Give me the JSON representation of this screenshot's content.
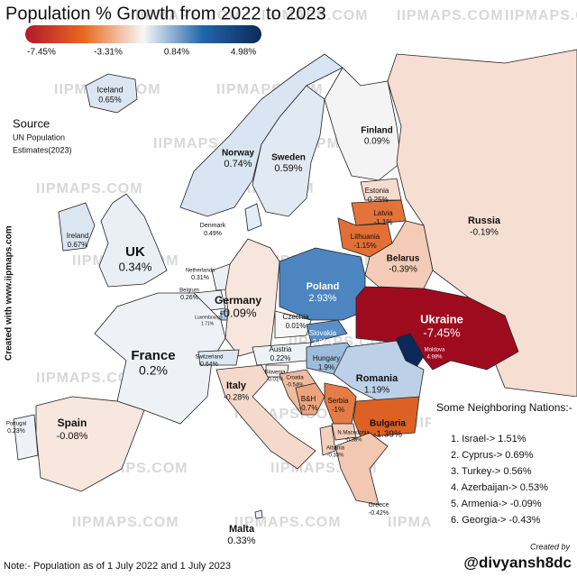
{
  "header": {
    "title": "Population % Growth from 2022 to 2023"
  },
  "legend": {
    "ticks": [
      "-7.45%",
      "-3.31%",
      "0.84%",
      "4.98%"
    ],
    "colors": [
      "#b2182b",
      "#e96a1f",
      "#f7f7f7",
      "#2166ac",
      "#0b2a5a"
    ]
  },
  "source": {
    "title": "Source",
    "lines": [
      "UN Population",
      "Estimates(2023)"
    ]
  },
  "watermark": "IIPMAPS.COM",
  "side_text": "Created with www.iipmaps.com",
  "countries": [
    {
      "name": "Iceland",
      "value": "0.65%",
      "color": "#dce6f2"
    },
    {
      "name": "Norway",
      "value": "0.74%",
      "color": "#d9e5f2"
    },
    {
      "name": "Sweden",
      "value": "0.59%",
      "color": "#e1e9f3"
    },
    {
      "name": "Finland",
      "value": "0.09%",
      "color": "#f4f4f4"
    },
    {
      "name": "Russia",
      "value": "-0.19%",
      "color": "#f6ded2"
    },
    {
      "name": "Estonia",
      "value": "-0.25%",
      "color": "#f6dccf"
    },
    {
      "name": "Latvia",
      "value": "-1.1%",
      "color": "#e4733a"
    },
    {
      "name": "Lithuania",
      "value": "-1.15%",
      "color": "#e26f35"
    },
    {
      "name": "Belarus",
      "value": "-0.39%",
      "color": "#f3cbb6"
    },
    {
      "name": "Denmark",
      "value": "0.49%",
      "color": "#e4ecf5"
    },
    {
      "name": "Ireland",
      "value": "0.67%",
      "color": "#dce6f2"
    },
    {
      "name": "UK",
      "value": "0.34%",
      "color": "#eaeff6"
    },
    {
      "name": "Netherlands",
      "value": "0.31%",
      "color": "#ebf0f6"
    },
    {
      "name": "Belgium",
      "value": "0.26%",
      "color": "#edf1f6"
    },
    {
      "name": "Luxembourg",
      "value": "1.71%",
      "color": "#a8c4e0"
    },
    {
      "name": "Germany",
      "value": "-0.09%",
      "color": "#f7e6dd"
    },
    {
      "name": "Poland",
      "value": "2.93%",
      "color": "#4d85c0"
    },
    {
      "name": "Czechia",
      "value": "0.01%",
      "color": "#f6f6f6"
    },
    {
      "name": "Slovakia",
      "value": "2.69%",
      "color": "#5a8fc5"
    },
    {
      "name": "Ukraine",
      "value": "-7.45%",
      "color": "#9e0b1f"
    },
    {
      "name": "Austria",
      "value": "0.22%",
      "color": "#eef2f7"
    },
    {
      "name": "Hungary",
      "value": "1.9%",
      "color": "#9ebddc"
    },
    {
      "name": "Moldova",
      "value": "4.98%",
      "color": "#0b2a5a"
    },
    {
      "name": "Romania",
      "value": "1.19%",
      "color": "#bcd1e7"
    },
    {
      "name": "France",
      "value": "0.2%",
      "color": "#eef2f7"
    },
    {
      "name": "Switzerland",
      "value": "0.64%",
      "color": "#dde7f2"
    },
    {
      "name": "Slovenia",
      "value": "-0.01%",
      "color": "#f7f0ec"
    },
    {
      "name": "Croatia",
      "value": "-0.54%",
      "color": "#f0bc9f"
    },
    {
      "name": "B&H",
      "value": "-0.7%",
      "color": "#eba47c"
    },
    {
      "name": "Serbia",
      "value": "-1%",
      "color": "#e57c46"
    },
    {
      "name": "Bulgaria",
      "value": "-1.39%",
      "color": "#dd6124"
    },
    {
      "name": "Italy",
      "value": "-0.28%",
      "color": "#f5d9cb"
    },
    {
      "name": "Spain",
      "value": "-0.08%",
      "color": "#f7e7de"
    },
    {
      "name": "Portugal",
      "value": "0.23%",
      "color": "#eef2f7"
    },
    {
      "name": "Albania",
      "value": "-0.35%",
      "color": "#f4cfbc"
    },
    {
      "name": "N.Macedonia",
      "value": "-0.38%",
      "color": "#f3ccb8"
    },
    {
      "name": "Greece",
      "value": "-0.42%",
      "color": "#f2c8b2"
    },
    {
      "name": "Malta",
      "value": "0.33%",
      "color": "#eaeff6"
    }
  ],
  "neighbors": {
    "title": "Some Neighboring Nations:-",
    "items": [
      "1. Israel-> 1.51%",
      "2. Cyprus-> 0.69%",
      "3. Turkey-> 0.56%",
      "4. Azerbaijan-> 0.53%",
      "5. Armenia-> -0.09%",
      "6. Georgia-> -0.43%"
    ]
  },
  "credit": {
    "label": "Created by",
    "handle": "@divyansh8dc"
  },
  "note": "Note:- Population as of 1 July 2022 and 1 July 2023"
}
